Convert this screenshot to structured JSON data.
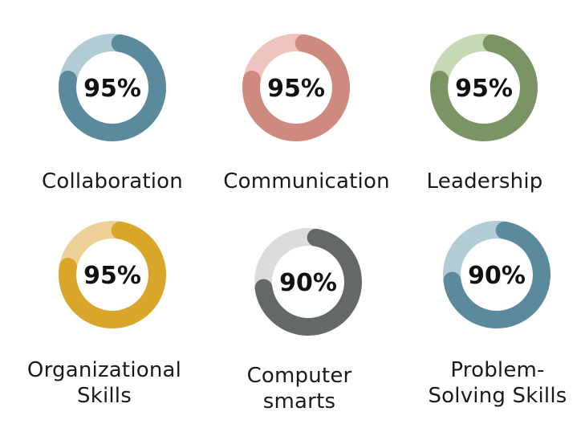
{
  "chart_data": {
    "type": "donut",
    "unit": "%",
    "items": [
      {
        "label": "Collaboration",
        "value": 95,
        "value_label": "95%",
        "color": "#5b8a9c",
        "track_color": "#b2ccd6"
      },
      {
        "label": "Communication",
        "value": 95,
        "value_label": "95%",
        "color": "#cf8a80",
        "track_color": "#f0c4be"
      },
      {
        "label": "Leadership",
        "value": 95,
        "value_label": "95%",
        "color": "#7b9463",
        "track_color": "#c6d8b4"
      },
      {
        "label": "Organizational Skills",
        "value": 95,
        "value_label": "95%",
        "color": "#d9a62a",
        "track_color": "#ecd095"
      },
      {
        "label": "Computer smarts",
        "value": 90,
        "value_label": "90%",
        "color": "#646867",
        "track_color": "#dcdcdc"
      },
      {
        "label": "Problem-Solving Skills",
        "value": 90,
        "value_label": "90%",
        "color": "#5b8a9c",
        "track_color": "#b2ccd6"
      }
    ]
  }
}
